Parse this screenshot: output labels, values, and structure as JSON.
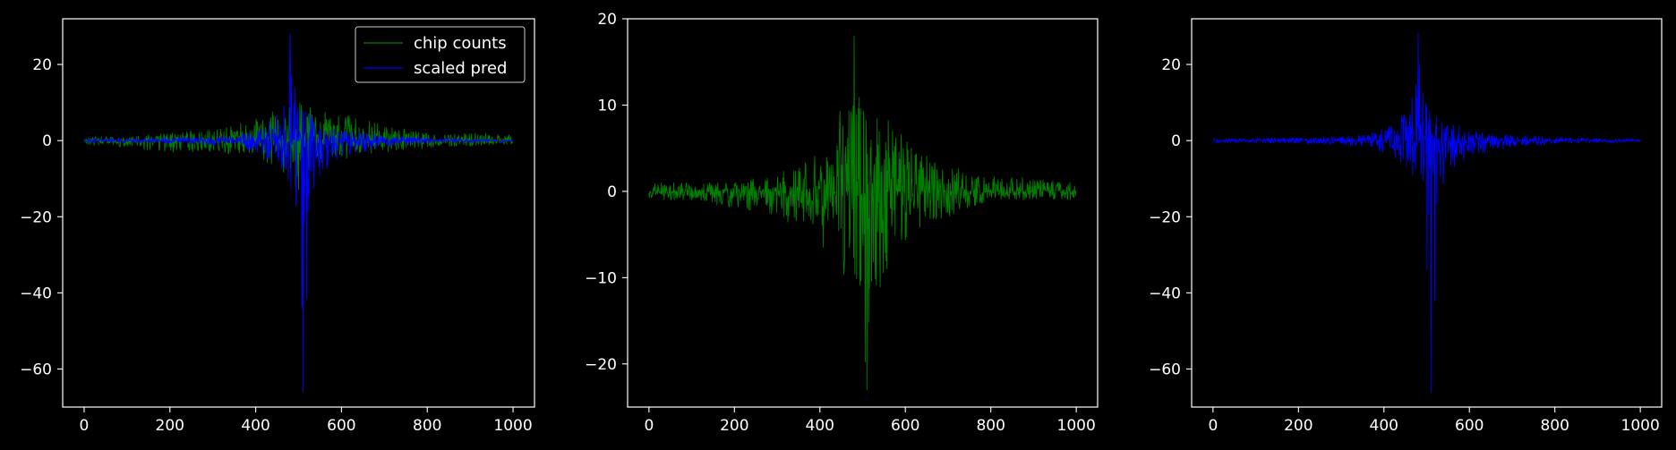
{
  "theme": {
    "background": "#000000",
    "foreground": "#ffffff",
    "green": "#008000",
    "blue": "#0000ff"
  },
  "chart_data": [
    {
      "type": "line",
      "xlim": [
        -50,
        1050
      ],
      "ylim": [
        -70,
        32
      ],
      "xticks": [
        0,
        200,
        400,
        600,
        800,
        1000
      ],
      "xtick_labels": [
        "0",
        "200",
        "400",
        "600",
        "800",
        "1000"
      ],
      "yticks": [
        -60,
        -40,
        -20,
        0,
        20
      ],
      "ytick_labels": [
        "−60",
        "−40",
        "−20",
        "0",
        "20"
      ],
      "legend": {
        "placement": "top-right"
      },
      "series": [
        {
          "name": "chip counts",
          "color": "#008000",
          "n_points": 1000,
          "envelope": {
            "x": [
              0,
              100,
              200,
              300,
              380,
              430,
              470,
              500,
              530,
              570,
              620,
              700,
              800,
              1000
            ],
            "max": [
              1,
              1,
              2,
              3,
              5,
              7,
              10,
              11,
              9,
              8,
              7,
              4,
              2,
              2
            ],
            "min": [
              -1,
              -2,
              -3,
              -3,
              -4,
              -6,
              -9,
              -13,
              -10,
              -8,
              -5,
              -3,
              -2,
              -1
            ]
          }
        },
        {
          "name": "scaled pred",
          "color": "#0000ff",
          "n_points": 1000,
          "envelope": {
            "x": [
              0,
              200,
              350,
              420,
              460,
              480,
              495,
              510,
              530,
              560,
              600,
              700,
              800,
              1000
            ],
            "max": [
              0.5,
              0.8,
              1.5,
              4,
              9,
              28,
              12,
              8,
              7,
              5,
              3,
              1.5,
              0.8,
              0.4
            ],
            "min": [
              -0.5,
              -0.8,
              -1.5,
              -4,
              -8,
              -12,
              -18,
              -66,
              -15,
              -8,
              -4,
              -2,
              -0.8,
              -0.4
            ]
          }
        }
      ]
    },
    {
      "type": "line",
      "xlim": [
        -50,
        1050
      ],
      "ylim": [
        -25,
        20
      ],
      "xticks": [
        0,
        200,
        400,
        600,
        800,
        1000
      ],
      "xtick_labels": [
        "0",
        "200",
        "400",
        "600",
        "800",
        "1000"
      ],
      "yticks": [
        -20,
        -10,
        0,
        10,
        20
      ],
      "ytick_labels": [
        "−20",
        "−10",
        "0",
        "10",
        "20"
      ],
      "series": [
        {
          "color": "#008000",
          "n_points": 1000,
          "envelope": {
            "x": [
              0,
              100,
              200,
              300,
              380,
              430,
              470,
              480,
              500,
              510,
              530,
              570,
              620,
              700,
              800,
              1000
            ],
            "max": [
              1,
              1,
              1,
              2,
              4,
              8,
              12,
              18,
              14,
              10,
              9,
              8,
              5,
              3,
              2,
              1
            ],
            "min": [
              -1,
              -1,
              -2,
              -3,
              -5,
              -8,
              -12,
              -10,
              -17,
              -23,
              -13,
              -8,
              -5,
              -3,
              -1,
              -1
            ]
          }
        }
      ]
    },
    {
      "type": "line",
      "xlim": [
        -50,
        1050
      ],
      "ylim": [
        -70,
        32
      ],
      "xticks": [
        0,
        200,
        400,
        600,
        800,
        1000
      ],
      "xtick_labels": [
        "0",
        "200",
        "400",
        "600",
        "800",
        "1000"
      ],
      "yticks": [
        -60,
        -40,
        -20,
        0,
        20
      ],
      "ytick_labels": [
        "−60",
        "−40",
        "−20",
        "0",
        "20"
      ],
      "series": [
        {
          "color": "#0000ff",
          "n_points": 1000,
          "envelope": {
            "x": [
              0,
              200,
              350,
              420,
              460,
              480,
              495,
              510,
              530,
              560,
              600,
              700,
              800,
              1000
            ],
            "max": [
              0.5,
              0.8,
              1.5,
              4,
              9,
              28,
              12,
              8,
              7,
              5,
              3,
              1.5,
              0.8,
              0.4
            ],
            "min": [
              -0.5,
              -0.8,
              -1.5,
              -4,
              -8,
              -12,
              -18,
              -66,
              -15,
              -8,
              -4,
              -2,
              -0.8,
              -0.4
            ]
          }
        }
      ]
    }
  ]
}
